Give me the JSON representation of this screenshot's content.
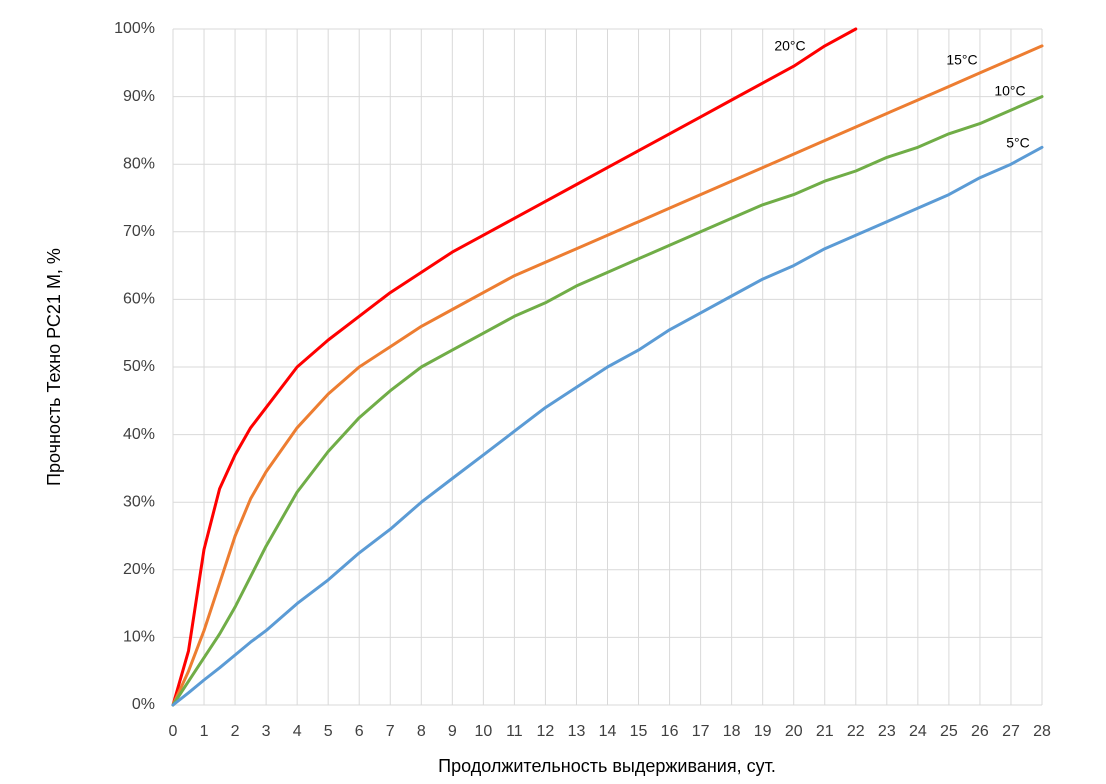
{
  "chart_data": {
    "type": "line",
    "x_label": "Продолжительность выдерживания, сут.",
    "y_label": "Прочность Техно РС21 М, %",
    "x": [
      0,
      0.5,
      1,
      1.5,
      2,
      2.5,
      3,
      4,
      5,
      6,
      7,
      8,
      9,
      10,
      11,
      12,
      13,
      14,
      15,
      16,
      17,
      18,
      19,
      20,
      21,
      22,
      23,
      24,
      25,
      26,
      27,
      28
    ],
    "series": [
      {
        "name": "20°C",
        "color": "#ff0000",
        "values": [
          0,
          8,
          23,
          32,
          37,
          41,
          44,
          50,
          54,
          57.5,
          61,
          64,
          67,
          69.5,
          72,
          74.5,
          77,
          79.5,
          82,
          84.5,
          87,
          89.5,
          92,
          94.5,
          97.5,
          100,
          null,
          null,
          null,
          null,
          null,
          null
        ]
      },
      {
        "name": "15°C",
        "color": "#ed7d31",
        "values": [
          0,
          5,
          11,
          18,
          25,
          30.5,
          34.5,
          41,
          46,
          50,
          53,
          56,
          58.5,
          61,
          63.5,
          65.5,
          67.5,
          69.5,
          71.5,
          73.5,
          75.5,
          77.5,
          79.5,
          81.5,
          83.5,
          85.5,
          87.5,
          89.5,
          91.5,
          93.5,
          95.5,
          97.5
        ]
      },
      {
        "name": "10°C",
        "color": "#70ad47",
        "values": [
          0,
          3.5,
          7,
          10.5,
          14.5,
          19,
          23.5,
          31.5,
          37.5,
          42.5,
          46.5,
          50,
          52.5,
          55,
          57.5,
          59.5,
          62,
          64,
          66,
          68,
          70,
          72,
          74,
          75.5,
          77.5,
          79,
          81,
          82.5,
          84.5,
          86,
          88,
          90
        ]
      },
      {
        "name": "5°C",
        "color": "#5b9bd5",
        "values": [
          0,
          1.8,
          3.7,
          5.5,
          7.4,
          9.3,
          11,
          15,
          18.5,
          22.5,
          26,
          30,
          33.5,
          37,
          40.5,
          44,
          47,
          50,
          52.5,
          55.5,
          58,
          60.5,
          63,
          65,
          67.5,
          69.5,
          71.5,
          73.5,
          75.5,
          78,
          80,
          82.5
        ]
      }
    ],
    "xlim": [
      0,
      28
    ],
    "xticks": [
      0,
      1,
      2,
      3,
      4,
      5,
      6,
      7,
      8,
      9,
      10,
      11,
      12,
      13,
      14,
      15,
      16,
      17,
      18,
      19,
      20,
      21,
      22,
      23,
      24,
      25,
      26,
      27,
      28
    ],
    "ylim": [
      0,
      100
    ],
    "yticks": [
      {
        "value": 0,
        "label": "0%"
      },
      {
        "value": 10,
        "label": "10%"
      },
      {
        "value": 20,
        "label": "20%"
      },
      {
        "value": 30,
        "label": "30%"
      },
      {
        "value": 40,
        "label": "40%"
      },
      {
        "value": 50,
        "label": "50%"
      },
      {
        "value": 60,
        "label": "60%"
      },
      {
        "value": 70,
        "label": "70%"
      },
      {
        "value": 80,
        "label": "80%"
      },
      {
        "value": 90,
        "label": "90%"
      },
      {
        "value": 100,
        "label": "100%"
      }
    ],
    "grid": true
  }
}
